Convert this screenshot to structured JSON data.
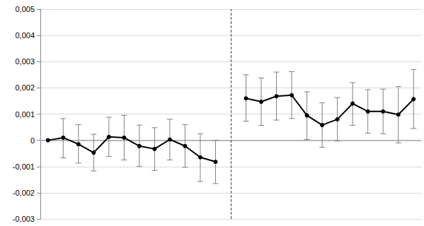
{
  "chart_data": {
    "type": "line",
    "categories": [
      null,
      null,
      null,
      null,
      null,
      null,
      null,
      null,
      null,
      null,
      null,
      null,
      null,
      null,
      null,
      null,
      null,
      null,
      null,
      null,
      null,
      null,
      null,
      null,
      null
    ],
    "values": [
      0,
      0.0001,
      -0.00015,
      -0.00047,
      0.00013,
      0.0001,
      -0.00022,
      -0.00033,
      3e-05,
      -0.00022,
      -0.00065,
      -0.00082,
      null,
      0.0016,
      0.00147,
      0.00168,
      0.00172,
      0.00095,
      0.00058,
      0.0008,
      0.0014,
      0.0011,
      0.0011,
      0.00098,
      0.00157
    ],
    "lower": [
      null,
      -0.00067,
      -0.00087,
      -0.00117,
      -0.00062,
      -0.00075,
      -0.001,
      -0.00115,
      -0.00075,
      -0.00103,
      -0.00157,
      -0.00165,
      null,
      0.00073,
      0.00057,
      0.00077,
      0.00083,
      3e-05,
      -0.00027,
      -3e-05,
      0.00057,
      0.00027,
      0.00025,
      -0.0001,
      0.00045
    ],
    "upper": [
      null,
      0.00083,
      0.0006,
      0.00023,
      0.00088,
      0.00095,
      0.00058,
      0.00048,
      0.0008,
      0.0006,
      0.00025,
      0.0,
      null,
      0.0025,
      0.00238,
      0.0026,
      0.00262,
      0.00185,
      0.00143,
      0.00163,
      0.0022,
      0.00193,
      0.00195,
      0.00205,
      0.0027
    ],
    "color": "#000000",
    "marker": "circle",
    "ylim": [
      -0.003,
      0.005
    ],
    "yticks": [
      {
        "value": -0.003,
        "label": "-0,003"
      },
      {
        "value": -0.002,
        "label": "-0,002"
      },
      {
        "value": -0.001,
        "label": "-0,001"
      },
      0,
      {
        "value": 0.001,
        "label": "0,001"
      },
      {
        "value": 0.002,
        "label": "0,002"
      },
      {
        "value": 0.003,
        "label": "0,003"
      },
      {
        "value": 0.004,
        "label": "0,004"
      },
      {
        "value": 0.005,
        "label": "0,005"
      }
    ],
    "grid": true,
    "tick_labels": "y"
  }
}
